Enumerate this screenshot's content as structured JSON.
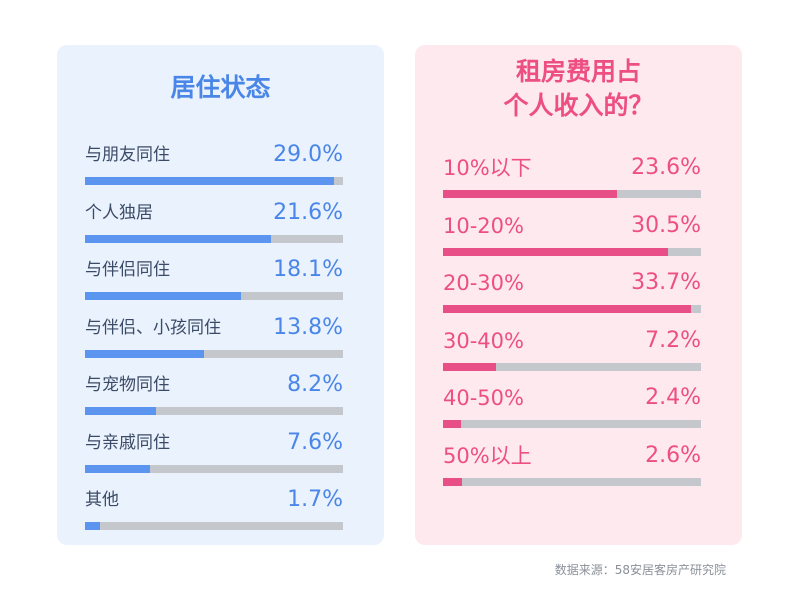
{
  "chart_data": [
    {
      "type": "bar",
      "title": "居住状态",
      "categories": [
        "与朋友同住",
        "个人独居",
        "与伴侣同住",
        "与伴侣、小孩同住",
        "与宠物同住",
        "与亲戚同住",
        "其他"
      ],
      "values": [
        29.0,
        21.6,
        18.1,
        13.8,
        8.2,
        7.6,
        1.7
      ],
      "value_labels": [
        "29.0%",
        "21.6%",
        "18.1%",
        "13.8%",
        "8.2%",
        "7.6%",
        "1.7%"
      ],
      "xlim": [
        0,
        30
      ],
      "orientation": "horizontal",
      "bar_color": "#5b95f0",
      "track_color": "#c4c7cc"
    },
    {
      "type": "bar",
      "title": "租房费用占\n个人收入的？",
      "categories": [
        "10%以下",
        "10-20%",
        "20-30%",
        "30-40%",
        "40-50%",
        "50%以上"
      ],
      "values": [
        23.6,
        30.5,
        33.7,
        7.2,
        2.4,
        2.6
      ],
      "value_labels": [
        "23.6%",
        "30.5%",
        "33.7%",
        "7.2%",
        "2.4%",
        "2.6%"
      ],
      "xlim": [
        0,
        35
      ],
      "orientation": "horizontal",
      "bar_color": "#e84f86",
      "track_color": "#c4c7cc"
    }
  ],
  "source": "数据来源：58安居客房产研究院",
  "colors": {
    "left_card_bg": "#e9f2fd",
    "right_card_bg": "#fde9ee",
    "left_accent": "#4a86e8",
    "right_accent": "#ed4f84"
  }
}
